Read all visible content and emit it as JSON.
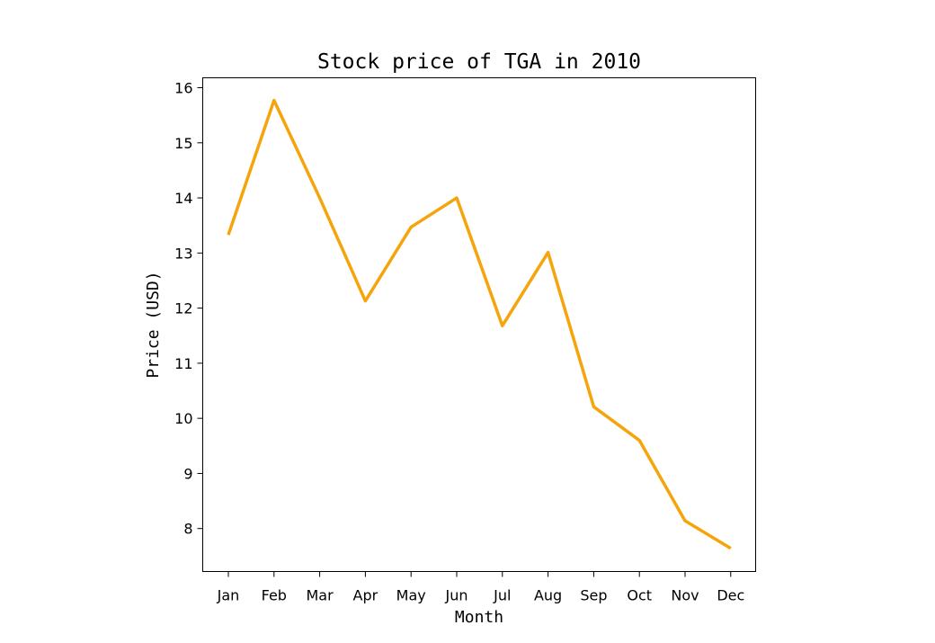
{
  "chart_data": {
    "type": "line",
    "title": "Stock price of TGA in 2010",
    "xlabel": "Month",
    "ylabel": "Price (USD)",
    "categories": [
      "Jan",
      "Feb",
      "Mar",
      "Apr",
      "May",
      "Jun",
      "Jul",
      "Aug",
      "Sep",
      "Oct",
      "Nov",
      "Dec"
    ],
    "series": [
      {
        "values": [
          13.33,
          15.77,
          14.0,
          12.13,
          13.47,
          14.0,
          11.68,
          13.01,
          10.21,
          9.6,
          8.14,
          7.64
        ],
        "color": "#f5a40c"
      }
    ],
    "ylim": [
      7.22,
      16.18
    ],
    "yticks": [
      8,
      9,
      10,
      11,
      12,
      13,
      14,
      15,
      16
    ],
    "grid": false,
    "legend": "none"
  }
}
